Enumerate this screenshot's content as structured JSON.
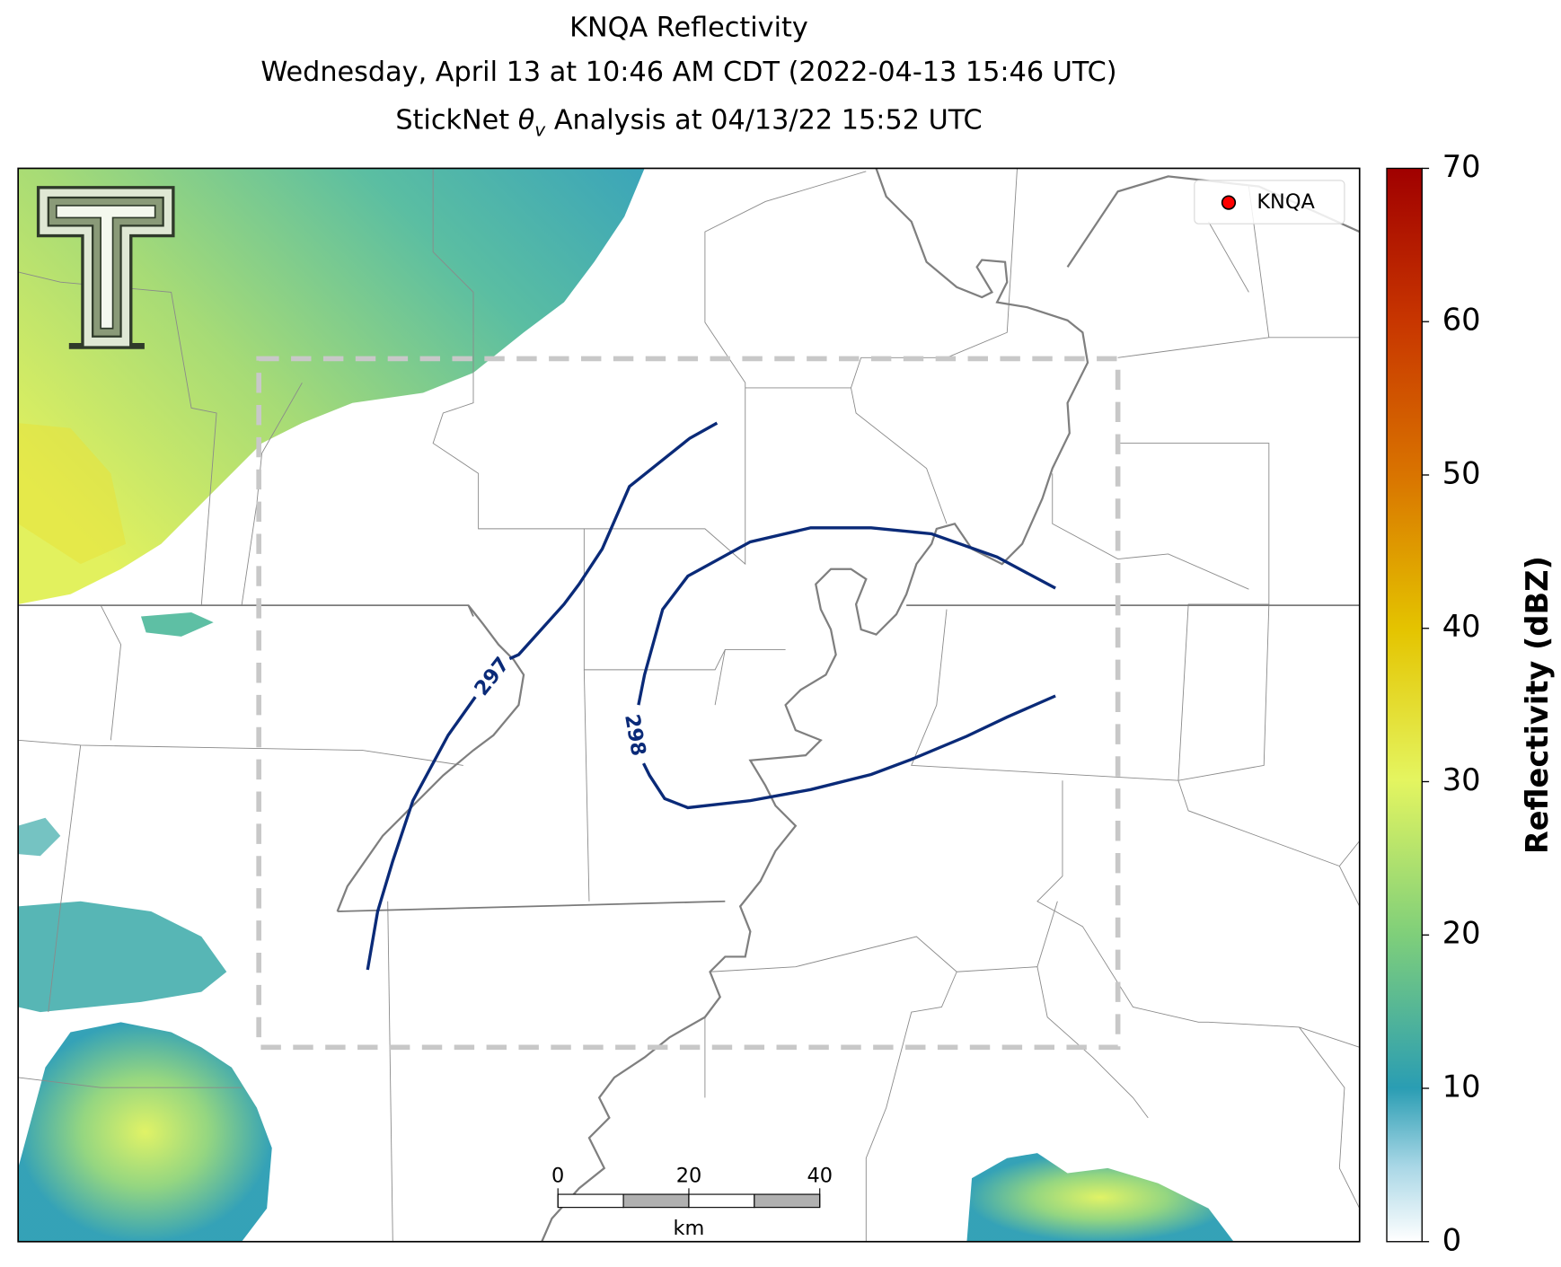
{
  "title": "KNQA Reflectivity",
  "subtitle": "Wednesday, April 13 at 10:46 AM CDT (2022-04-13 15:46 UTC)",
  "analysis_line": {
    "prefix": "StickNet ",
    "symbol": "θ",
    "subscript": "v",
    "suffix": " Analysis at 04/13/22 15:52 UTC"
  },
  "legend": {
    "label": "KNQA",
    "color": "#ff0000"
  },
  "contours": [
    {
      "level": 297
    },
    {
      "level": 298
    }
  ],
  "colorbar": {
    "label": "Reflectivity (dBZ)",
    "lim": [
      0,
      70
    ],
    "ticks": [
      0,
      10,
      20,
      30,
      40,
      50,
      60,
      70
    ]
  },
  "scale_bar": {
    "ticks": [
      0,
      20,
      40
    ],
    "unit": "km"
  }
}
